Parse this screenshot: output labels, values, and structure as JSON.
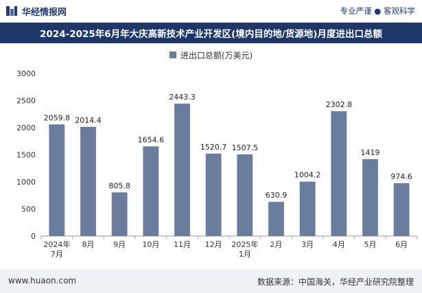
{
  "header": {
    "brand_name": "华经情报网",
    "tagline": "专业严谨 ● 客观科学"
  },
  "chart_data": {
    "type": "bar",
    "title": "2024-2025年6月年大庆高新技术产业开发区(境内目的地/货源地)月度进出口总额",
    "categories": [
      "2024年\n7月",
      "8月",
      "9月",
      "10月",
      "11月",
      "12月",
      "2025年\n1月",
      "2月",
      "3月",
      "4月",
      "5月",
      "6月"
    ],
    "series": [
      {
        "name": "进出口总额(万美元)",
        "values": [
          2059.8,
          2014.4,
          805.8,
          1654.6,
          2443.3,
          1520.7,
          1507.5,
          630.9,
          1004.2,
          2302.8,
          1419,
          974.6
        ],
        "labels": [
          "2059.8",
          "2014.4",
          "805.8",
          "1654.6",
          "2443.3",
          "1520.7",
          "1507.5",
          "630.9",
          "1004.2",
          "2302.8",
          "1419",
          "974.6"
        ]
      }
    ],
    "ylim": [
      0,
      3000
    ],
    "yticks": [
      0,
      500,
      1000,
      1500,
      2000,
      2500,
      3000
    ],
    "legend_position": "top-center",
    "grid": false,
    "bar_color": "#6b7d9d"
  },
  "footer": {
    "url": "www.huaon.com",
    "source": "数据来源：中国海关，华经产业研究院整理"
  }
}
